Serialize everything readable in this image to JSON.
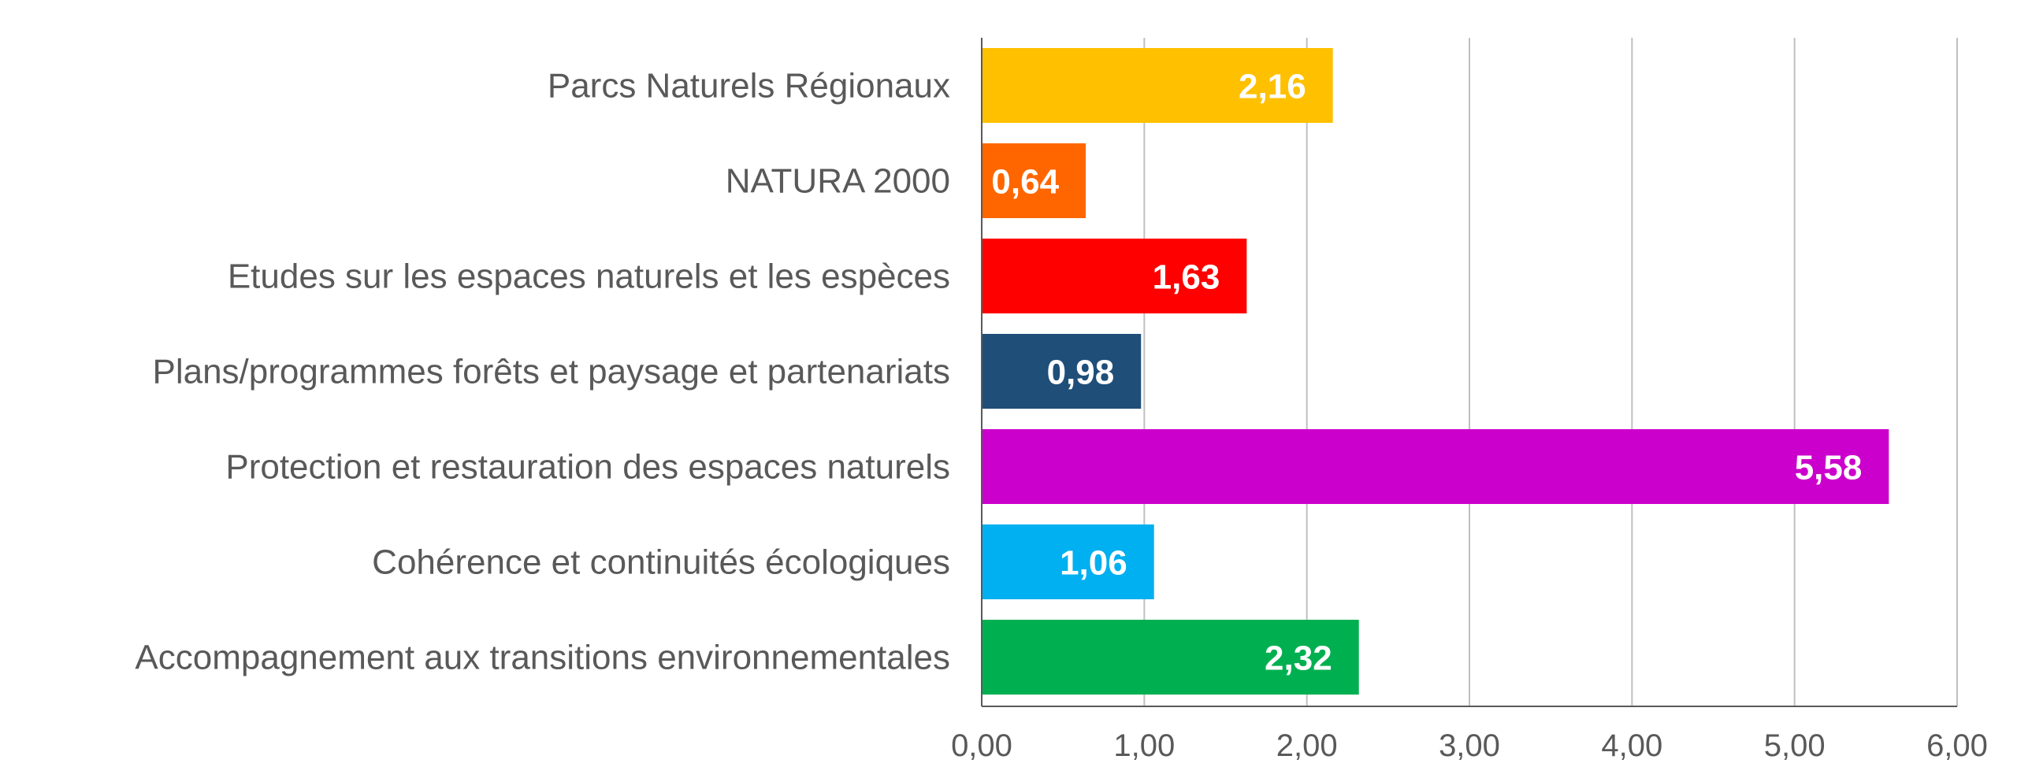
{
  "chart_data": {
    "type": "bar",
    "orientation": "horizontal",
    "title": "",
    "xlabel": "",
    "ylabel": "",
    "xlim": [
      0,
      6
    ],
    "x_ticks": [
      0,
      1,
      2,
      3,
      4,
      5,
      6
    ],
    "tick_labels": [
      "0,00",
      "1,00",
      "2,00",
      "3,00",
      "4,00",
      "5,00",
      "6,00"
    ],
    "grid": "vertical",
    "legend": "none",
    "categories": [
      "Parcs Naturels Régionaux",
      "NATURA 2000",
      "Etudes sur les espaces naturels et les espèces",
      "Plans/programmes forêts et paysage et partenariats",
      "Protection et restauration des espaces naturels",
      "Cohérence et continuités écologiques",
      "Accompagnement aux transitions environnementales"
    ],
    "values": [
      2.16,
      0.64,
      1.63,
      0.98,
      5.58,
      1.06,
      2.32
    ],
    "value_labels": [
      "2,16",
      "0,64",
      "1,63",
      "0,98",
      "5,58",
      "1,06",
      "2,32"
    ],
    "colors": [
      "#FFC000",
      "#FF6600",
      "#FF0000",
      "#1F4E79",
      "#CC00CC",
      "#00B0F0",
      "#00B050"
    ]
  }
}
